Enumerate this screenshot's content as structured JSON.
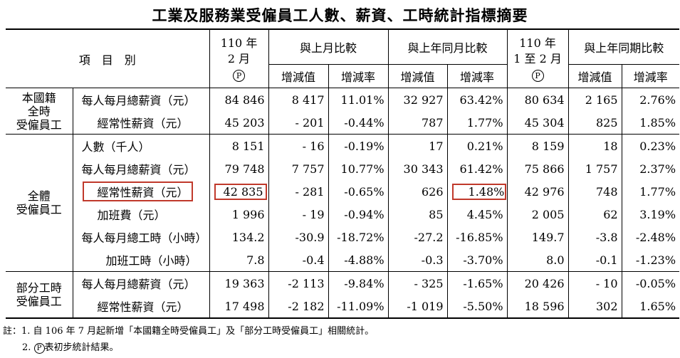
{
  "title": "工業及服務業受僱員工人數、薪資、工時統計指標摘要",
  "header": {
    "item_col": "項　目　別",
    "month_col_line1": "110 年",
    "month_col_line2": "2 月",
    "prelim_mark": "P",
    "mom_group": "與上月比較",
    "yoy_group": "與上年同月比較",
    "ytd_col_line1": "110 年",
    "ytd_col_line2": "1 至 2 月",
    "ytd_yoy_group": "與上年同期比較",
    "change_value": "增減值",
    "change_rate": "增減率"
  },
  "groups": {
    "g1_line1": "本國籍",
    "g1_line2": "全時",
    "g1_line3": "受僱員工",
    "g2_line1": "全體",
    "g2_line2": "受僱員工",
    "g3_line1": "部分工時",
    "g3_line2": "受僱員工"
  },
  "rows": [
    {
      "label": "每人每月總薪資（元）",
      "v": "84 846",
      "mom_v": "8 417",
      "mom_r": "11.01%",
      "yoy_v": "32 927",
      "yoy_r": "63.42%",
      "ytd": "80 634",
      "ytd_v": "2 165",
      "ytd_r": "2.76%"
    },
    {
      "label": "經常性薪資（元）",
      "v": "45 203",
      "mom_v": "- 201",
      "mom_r": "-0.44%",
      "yoy_v": "787",
      "yoy_r": "1.77%",
      "ytd": "45 304",
      "ytd_v": "825",
      "ytd_r": "1.85%"
    },
    {
      "label": "人數（千人）",
      "v": "8 151",
      "mom_v": "- 16",
      "mom_r": "-0.19%",
      "yoy_v": "17",
      "yoy_r": "0.21%",
      "ytd": "8 159",
      "ytd_v": "18",
      "ytd_r": "0.23%"
    },
    {
      "label": "每人每月總薪資（元）",
      "v": "79 748",
      "mom_v": "7 757",
      "mom_r": "10.77%",
      "yoy_v": "30 343",
      "yoy_r": "61.42%",
      "ytd": "75 866",
      "ytd_v": "1 757",
      "ytd_r": "2.37%"
    },
    {
      "label": "經常性薪資（元）",
      "v": "42 835",
      "mom_v": "- 281",
      "mom_r": "-0.65%",
      "yoy_v": "626",
      "yoy_r": "1.48%",
      "ytd": "42 976",
      "ytd_v": "748",
      "ytd_r": "1.77%"
    },
    {
      "label": "加班費（元）",
      "v": "1 996",
      "mom_v": "- 19",
      "mom_r": "-0.94%",
      "yoy_v": "85",
      "yoy_r": "4.45%",
      "ytd": "2 005",
      "ytd_v": "62",
      "ytd_r": "3.19%"
    },
    {
      "label": "每人每月總工時（小時）",
      "v": "134.2",
      "mom_v": "-30.9",
      "mom_r": "-18.72%",
      "yoy_v": "-27.2",
      "yoy_r": "-16.85%",
      "ytd": "149.7",
      "ytd_v": "-3.8",
      "ytd_r": "-2.48%"
    },
    {
      "label": "加班工時（小時）",
      "v": "7.8",
      "mom_v": "-0.4",
      "mom_r": "-4.88%",
      "yoy_v": "-0.3",
      "yoy_r": "-3.70%",
      "ytd": "8.0",
      "ytd_v": "-0.1",
      "ytd_r": "-1.23%"
    },
    {
      "label": "每人每月總薪資（元）",
      "v": "19 363",
      "mom_v": "-2 113",
      "mom_r": "-9.84%",
      "yoy_v": "- 325",
      "yoy_r": "-1.65%",
      "ytd": "20 426",
      "ytd_v": "- 10",
      "ytd_r": "-0.05%"
    },
    {
      "label": "經常性薪資（元）",
      "v": "17 498",
      "mom_v": "-2 182",
      "mom_r": "-11.09%",
      "yoy_v": "-1 019",
      "yoy_r": "-5.50%",
      "ytd": "18 596",
      "ytd_v": "302",
      "ytd_r": "1.65%"
    }
  ],
  "notes": {
    "n1": "註：1. 自 106 年 7 月起新增「本國籍全時受僱員工」及「部分工時受僱員工」相關統計。",
    "n2_prefix": "2.",
    "n2_mark": "P",
    "n2_text": "表初步統計結果。"
  },
  "highlight_color": "#c0392b"
}
